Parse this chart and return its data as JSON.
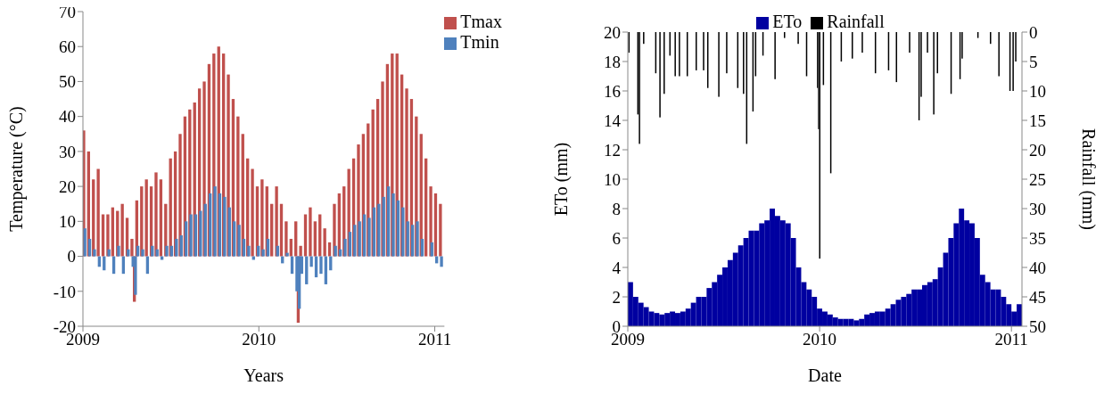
{
  "chart_data": [
    {
      "type": "bar",
      "xlabel": "Years",
      "ylabel": "Temperature (°C)",
      "legend": "top right",
      "x": [
        "2009-01-01",
        "2009-01-11",
        "2009-01-21",
        "2009-01-31",
        "2009-02-10",
        "2009-02-20",
        "2009-03-02",
        "2009-03-12",
        "2009-03-22",
        "2009-04-01",
        "2009-04-11",
        "2009-04-16",
        "2009-04-21",
        "2009-05-01",
        "2009-05-11",
        "2009-05-21",
        "2009-05-31",
        "2009-06-10",
        "2009-06-20",
        "2009-06-30",
        "2009-07-10",
        "2009-07-20",
        "2009-07-30",
        "2009-08-09",
        "2009-08-19",
        "2009-08-29",
        "2009-09-08",
        "2009-09-18",
        "2009-09-28",
        "2009-10-08",
        "2009-10-18",
        "2009-10-28",
        "2009-11-07",
        "2009-11-17",
        "2009-11-27",
        "2009-12-07",
        "2009-12-17",
        "2009-12-27",
        "2010-01-06",
        "2010-01-16",
        "2010-01-26",
        "2010-02-05",
        "2010-02-15",
        "2010-02-25",
        "2010-03-07",
        "2010-03-17",
        "2010-03-22",
        "2010-03-27",
        "2010-04-06",
        "2010-04-16",
        "2010-04-26",
        "2010-05-06",
        "2010-05-16",
        "2010-05-26",
        "2010-06-05",
        "2010-06-15",
        "2010-06-25",
        "2010-07-05",
        "2010-07-15",
        "2010-07-25",
        "2010-08-04",
        "2010-08-14",
        "2010-08-24",
        "2010-09-03",
        "2010-09-13",
        "2010-09-23",
        "2010-10-03",
        "2010-10-13",
        "2010-10-23",
        "2010-11-02",
        "2010-11-12",
        "2010-11-22",
        "2010-12-02",
        "2010-12-12",
        "2010-12-22",
        "2011-01-01",
        "2011-01-11"
      ],
      "series": [
        {
          "name": "Tmax",
          "color": "#c0504d",
          "values": [
            36,
            30,
            22,
            25,
            12,
            12,
            14,
            13,
            15,
            11,
            5,
            -13,
            16,
            20,
            22,
            20,
            24,
            22,
            15,
            28,
            30,
            35,
            40,
            42,
            44,
            48,
            50,
            55,
            58,
            60,
            58,
            52,
            45,
            40,
            35,
            28,
            25,
            20,
            22,
            20,
            15,
            20,
            15,
            10,
            5,
            10,
            -19,
            3,
            12,
            14,
            10,
            12,
            8,
            4,
            15,
            18,
            20,
            25,
            28,
            32,
            35,
            38,
            42,
            45,
            50,
            55,
            58,
            58,
            52,
            48,
            45,
            40,
            35,
            28,
            20,
            18,
            15
          ]
        },
        {
          "name": "Tmin",
          "color": "#4f81bd",
          "values": [
            8,
            5,
            2,
            -3,
            -4,
            2,
            -5,
            3,
            -5,
            2,
            -3,
            -11,
            3,
            2,
            -5,
            3,
            2,
            -1,
            3,
            3,
            5,
            6,
            10,
            12,
            12,
            13,
            15,
            18,
            20,
            18,
            17,
            14,
            10,
            9,
            5,
            3,
            -1,
            3,
            2,
            5,
            0,
            3,
            -2,
            1,
            -5,
            -10,
            -15,
            -5,
            -8,
            -3,
            -6,
            -5,
            -8,
            -4,
            3,
            2,
            5,
            7,
            9,
            10,
            12,
            11,
            14,
            15,
            17,
            20,
            18,
            16,
            14,
            10,
            9,
            10,
            5,
            0,
            4,
            -2,
            -3
          ]
        }
      ],
      "xlim": [
        "2009-01-01",
        "2011-01-21"
      ],
      "xticks": [
        {
          "value": "2009-01-01",
          "label": "2009"
        },
        {
          "value": "2010-01-01",
          "label": "2010"
        },
        {
          "value": "2011-01-01",
          "label": "2011"
        }
      ],
      "ylim": [
        -20,
        70
      ],
      "yticks": [
        -20,
        -10,
        0,
        10,
        20,
        30,
        40,
        50,
        60,
        70
      ]
    },
    {
      "type": "bar",
      "xlabel": "Date",
      "ylabel": "ETo (mm)",
      "y2label": "Rainfall (mm)",
      "legend": "top",
      "x": [
        "2009-01-01",
        "2009-01-11",
        "2009-01-21",
        "2009-01-31",
        "2009-02-10",
        "2009-02-20",
        "2009-03-02",
        "2009-03-12",
        "2009-03-22",
        "2009-04-01",
        "2009-04-11",
        "2009-04-21",
        "2009-05-01",
        "2009-05-11",
        "2009-05-21",
        "2009-05-31",
        "2009-06-10",
        "2009-06-20",
        "2009-06-30",
        "2009-07-10",
        "2009-07-20",
        "2009-07-30",
        "2009-08-09",
        "2009-08-19",
        "2009-08-29",
        "2009-09-08",
        "2009-09-18",
        "2009-09-28",
        "2009-10-08",
        "2009-10-18",
        "2009-10-28",
        "2009-11-07",
        "2009-11-17",
        "2009-11-27",
        "2009-12-07",
        "2009-12-17",
        "2009-12-27",
        "2010-01-06",
        "2010-01-16",
        "2010-01-26",
        "2010-02-05",
        "2010-02-15",
        "2010-02-25",
        "2010-03-07",
        "2010-03-17",
        "2010-03-27",
        "2010-04-06",
        "2010-04-16",
        "2010-04-26",
        "2010-05-06",
        "2010-05-16",
        "2010-05-26",
        "2010-06-05",
        "2010-06-15",
        "2010-06-25",
        "2010-07-05",
        "2010-07-15",
        "2010-07-25",
        "2010-08-04",
        "2010-08-14",
        "2010-08-24",
        "2010-09-03",
        "2010-09-13",
        "2010-09-23",
        "2010-10-03",
        "2010-10-13",
        "2010-10-23",
        "2010-11-02",
        "2010-11-12",
        "2010-11-22",
        "2010-12-02",
        "2010-12-12",
        "2010-12-22",
        "2011-01-01",
        "2011-01-11"
      ],
      "series": [
        {
          "name": "ETo",
          "color": "#0000a0",
          "values": [
            3,
            2,
            1.6,
            1.3,
            1,
            0.9,
            0.8,
            0.9,
            1,
            0.9,
            1,
            1.2,
            1.6,
            2,
            2,
            2.6,
            3,
            3.5,
            4,
            4.5,
            5,
            5.5,
            6,
            6.5,
            6.5,
            7,
            7.2,
            8,
            7.5,
            7.2,
            7,
            6,
            4,
            3,
            2.5,
            2,
            1.2,
            1,
            0.8,
            0.6,
            0.5,
            0.5,
            0.5,
            0.4,
            0.5,
            0.8,
            0.9,
            1,
            1,
            1.2,
            1.5,
            1.8,
            2,
            2.2,
            2.5,
            2.5,
            2.8,
            3,
            3.2,
            4,
            5,
            6,
            7,
            8,
            7.2,
            7,
            6,
            3.5,
            3,
            2.5,
            2.5,
            2,
            1.5,
            1,
            1.5
          ]
        },
        {
          "name": "Rainfall",
          "color": "#000000",
          "axis": "y2",
          "x": [
            "2009-01-02",
            "2009-01-19",
            "2009-01-22",
            "2009-01-30",
            "2009-02-22",
            "2009-03-02",
            "2009-03-10",
            "2009-03-21",
            "2009-03-31",
            "2009-04-08",
            "2009-04-23",
            "2009-05-10",
            "2009-05-24",
            "2009-06-01",
            "2009-06-22",
            "2009-07-07",
            "2009-07-28",
            "2009-08-08",
            "2009-08-14",
            "2009-08-26",
            "2009-08-31",
            "2009-09-14",
            "2009-10-07",
            "2009-10-25",
            "2009-11-20",
            "2009-12-06",
            "2009-12-27",
            "2009-12-29",
            "2009-12-31",
            "2010-01-07",
            "2010-01-21",
            "2010-02-10",
            "2010-03-03",
            "2010-03-22",
            "2010-04-16",
            "2010-05-11",
            "2010-05-26",
            "2010-06-20",
            "2010-07-08",
            "2010-07-12",
            "2010-07-24",
            "2010-08-05",
            "2010-08-12",
            "2010-09-07",
            "2010-09-24",
            "2010-09-28",
            "2010-10-28",
            "2010-11-21",
            "2010-12-07",
            "2010-12-28",
            "2011-01-03",
            "2011-01-08"
          ],
          "values": [
            3.5,
            14,
            19,
            2,
            7,
            14.5,
            10.5,
            4,
            7.5,
            7.5,
            7.5,
            6.5,
            6.5,
            9.5,
            11,
            7,
            9.5,
            10.5,
            19,
            13.5,
            7.5,
            4,
            8,
            1,
            2,
            7.5,
            9.5,
            16.5,
            38.5,
            9,
            24,
            5,
            4.5,
            3.5,
            7,
            6.5,
            8.5,
            3.5,
            15,
            11,
            3.5,
            14,
            7,
            10.5,
            8,
            4.5,
            1,
            2,
            7.5,
            10,
            10,
            5
          ]
        }
      ],
      "xlim": [
        "2009-01-01",
        "2011-01-21"
      ],
      "xticks": [
        {
          "value": "2009-01-01",
          "label": "2009"
        },
        {
          "value": "2010-01-01",
          "label": "2010"
        },
        {
          "value": "2011-01-01",
          "label": "2011"
        }
      ],
      "ylim": [
        0,
        20
      ],
      "yticks": [
        0,
        2,
        4,
        6,
        8,
        10,
        12,
        14,
        16,
        18,
        20
      ],
      "y2lim": [
        50,
        0
      ],
      "y2ticks": [
        0,
        5,
        10,
        15,
        20,
        25,
        30,
        35,
        40,
        45,
        50
      ]
    }
  ]
}
